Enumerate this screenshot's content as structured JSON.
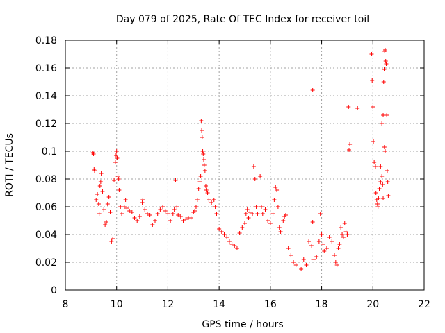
{
  "chart_data": {
    "type": "scatter",
    "title": "Day 079 of 2025, Rate Of TEC Index for receiver toil",
    "xlabel": "GPS time / hours",
    "ylabel": "ROTI / TECUs",
    "xlim": [
      8,
      22
    ],
    "ylim": [
      0,
      0.18
    ],
    "xticks": [
      8,
      10,
      12,
      14,
      16,
      18,
      20,
      22
    ],
    "xtick_labels": [
      "8",
      "10",
      "12",
      "14",
      "16",
      "18",
      "20",
      "22"
    ],
    "yticks": [
      0,
      0.02,
      0.04,
      0.06,
      0.08,
      0.1,
      0.12,
      0.14,
      0.16,
      0.18
    ],
    "ytick_labels": [
      "0",
      "0.02",
      "0.04",
      "0.06",
      "0.08",
      "0.1",
      "0.12",
      "0.14",
      "0.16",
      "0.18"
    ],
    "grid": true,
    "marker": "+",
    "color": "#ff0000",
    "series": [
      {
        "name": "ROTI",
        "points": [
          [
            9.08,
            0.099
          ],
          [
            9.1,
            0.098
          ],
          [
            9.12,
            0.087
          ],
          [
            9.14,
            0.086
          ],
          [
            9.2,
            0.065
          ],
          [
            9.25,
            0.069
          ],
          [
            9.3,
            0.062
          ],
          [
            9.32,
            0.055
          ],
          [
            9.35,
            0.075
          ],
          [
            9.38,
            0.078
          ],
          [
            9.4,
            0.084
          ],
          [
            9.45,
            0.071
          ],
          [
            9.5,
            0.058
          ],
          [
            9.55,
            0.047
          ],
          [
            9.6,
            0.049
          ],
          [
            9.65,
            0.062
          ],
          [
            9.7,
            0.067
          ],
          [
            9.75,
            0.056
          ],
          [
            9.8,
            0.035
          ],
          [
            9.85,
            0.037
          ],
          [
            9.9,
            0.079
          ],
          [
            9.95,
            0.092
          ],
          [
            9.98,
            0.097
          ],
          [
            10.0,
            0.1
          ],
          [
            10.02,
            0.095
          ],
          [
            10.05,
            0.082
          ],
          [
            10.08,
            0.08
          ],
          [
            10.1,
            0.072
          ],
          [
            10.15,
            0.06
          ],
          [
            10.2,
            0.055
          ],
          [
            10.3,
            0.06
          ],
          [
            10.35,
            0.065
          ],
          [
            10.4,
            0.059
          ],
          [
            10.5,
            0.057
          ],
          [
            10.6,
            0.056
          ],
          [
            10.7,
            0.052
          ],
          [
            10.8,
            0.05
          ],
          [
            10.9,
            0.053
          ],
          [
            11.0,
            0.063
          ],
          [
            11.02,
            0.065
          ],
          [
            11.1,
            0.058
          ],
          [
            11.2,
            0.055
          ],
          [
            11.3,
            0.054
          ],
          [
            11.4,
            0.047
          ],
          [
            11.5,
            0.05
          ],
          [
            11.6,
            0.055
          ],
          [
            11.7,
            0.058
          ],
          [
            11.8,
            0.06
          ],
          [
            11.9,
            0.057
          ],
          [
            12.0,
            0.055
          ],
          [
            12.1,
            0.05
          ],
          [
            12.2,
            0.055
          ],
          [
            12.25,
            0.058
          ],
          [
            12.3,
            0.079
          ],
          [
            12.35,
            0.06
          ],
          [
            12.4,
            0.054
          ],
          [
            12.5,
            0.053
          ],
          [
            12.6,
            0.05
          ],
          [
            12.7,
            0.051
          ],
          [
            12.8,
            0.052
          ],
          [
            12.9,
            0.052
          ],
          [
            13.0,
            0.056
          ],
          [
            13.05,
            0.057
          ],
          [
            13.1,
            0.06
          ],
          [
            13.15,
            0.065
          ],
          [
            13.2,
            0.073
          ],
          [
            13.25,
            0.078
          ],
          [
            13.28,
            0.082
          ],
          [
            13.3,
            0.122
          ],
          [
            13.32,
            0.115
          ],
          [
            13.34,
            0.11
          ],
          [
            13.36,
            0.1
          ],
          [
            13.38,
            0.098
          ],
          [
            13.4,
            0.094
          ],
          [
            13.42,
            0.09
          ],
          [
            13.45,
            0.086
          ],
          [
            13.48,
            0.075
          ],
          [
            13.5,
            0.072
          ],
          [
            13.55,
            0.07
          ],
          [
            13.6,
            0.065
          ],
          [
            13.7,
            0.063
          ],
          [
            13.8,
            0.065
          ],
          [
            13.85,
            0.06
          ],
          [
            13.9,
            0.055
          ],
          [
            14.0,
            0.044
          ],
          [
            14.1,
            0.042
          ],
          [
            14.2,
            0.04
          ],
          [
            14.3,
            0.038
          ],
          [
            14.4,
            0.035
          ],
          [
            14.5,
            0.033
          ],
          [
            14.6,
            0.032
          ],
          [
            14.7,
            0.03
          ],
          [
            14.8,
            0.041
          ],
          [
            14.9,
            0.045
          ],
          [
            15.0,
            0.048
          ],
          [
            15.05,
            0.055
          ],
          [
            15.1,
            0.058
          ],
          [
            15.15,
            0.052
          ],
          [
            15.2,
            0.056
          ],
          [
            15.3,
            0.055
          ],
          [
            15.35,
            0.089
          ],
          [
            15.4,
            0.08
          ],
          [
            15.45,
            0.06
          ],
          [
            15.5,
            0.055
          ],
          [
            15.6,
            0.082
          ],
          [
            15.65,
            0.06
          ],
          [
            15.7,
            0.055
          ],
          [
            15.8,
            0.058
          ],
          [
            15.9,
            0.05
          ],
          [
            16.0,
            0.048
          ],
          [
            16.1,
            0.055
          ],
          [
            16.15,
            0.065
          ],
          [
            16.2,
            0.074
          ],
          [
            16.25,
            0.072
          ],
          [
            16.3,
            0.06
          ],
          [
            16.35,
            0.045
          ],
          [
            16.4,
            0.042
          ],
          [
            16.5,
            0.05
          ],
          [
            16.55,
            0.053
          ],
          [
            16.6,
            0.054
          ],
          [
            16.7,
            0.03
          ],
          [
            16.8,
            0.025
          ],
          [
            16.9,
            0.02
          ],
          [
            17.0,
            0.018
          ],
          [
            17.2,
            0.015
          ],
          [
            17.3,
            0.022
          ],
          [
            17.4,
            0.018
          ],
          [
            17.5,
            0.035
          ],
          [
            17.6,
            0.032
          ],
          [
            17.65,
            0.049
          ],
          [
            17.7,
            0.022
          ],
          [
            17.8,
            0.024
          ],
          [
            17.9,
            0.035
          ],
          [
            17.95,
            0.055
          ],
          [
            18.0,
            0.04
          ],
          [
            18.05,
            0.033
          ],
          [
            18.1,
            0.028
          ],
          [
            18.2,
            0.03
          ],
          [
            18.3,
            0.038
          ],
          [
            18.4,
            0.035
          ],
          [
            18.5,
            0.025
          ],
          [
            18.55,
            0.02
          ],
          [
            18.6,
            0.018
          ],
          [
            18.65,
            0.03
          ],
          [
            18.7,
            0.033
          ],
          [
            18.75,
            0.045
          ],
          [
            18.8,
            0.04
          ],
          [
            18.85,
            0.038
          ],
          [
            18.9,
            0.048
          ],
          [
            18.95,
            0.042
          ],
          [
            19.0,
            0.04
          ],
          [
            19.05,
            0.132
          ],
          [
            19.07,
            0.101
          ],
          [
            19.1,
            0.105
          ],
          [
            19.4,
            0.131
          ],
          [
            17.65,
            0.144
          ],
          [
            19.95,
            0.17
          ],
          [
            19.97,
            0.151
          ],
          [
            20.0,
            0.132
          ],
          [
            20.02,
            0.107
          ],
          [
            20.05,
            0.092
          ],
          [
            20.1,
            0.089
          ],
          [
            20.12,
            0.07
          ],
          [
            20.15,
            0.065
          ],
          [
            20.18,
            0.062
          ],
          [
            20.2,
            0.06
          ],
          [
            20.22,
            0.066
          ],
          [
            20.25,
            0.073
          ],
          [
            20.3,
            0.089
          ],
          [
            20.35,
            0.12
          ],
          [
            20.4,
            0.126
          ],
          [
            20.42,
            0.15
          ],
          [
            20.44,
            0.159
          ],
          [
            20.46,
            0.172
          ],
          [
            20.48,
            0.173
          ],
          [
            20.5,
            0.165
          ],
          [
            20.52,
            0.163
          ],
          [
            20.54,
            0.126
          ],
          [
            20.56,
            0.086
          ],
          [
            20.58,
            0.078
          ],
          [
            20.6,
            0.068
          ],
          [
            20.45,
            0.103
          ],
          [
            20.48,
            0.1
          ],
          [
            20.3,
            0.078
          ],
          [
            20.35,
            0.082
          ],
          [
            20.38,
            0.076
          ],
          [
            20.4,
            0.066
          ]
        ]
      }
    ]
  }
}
